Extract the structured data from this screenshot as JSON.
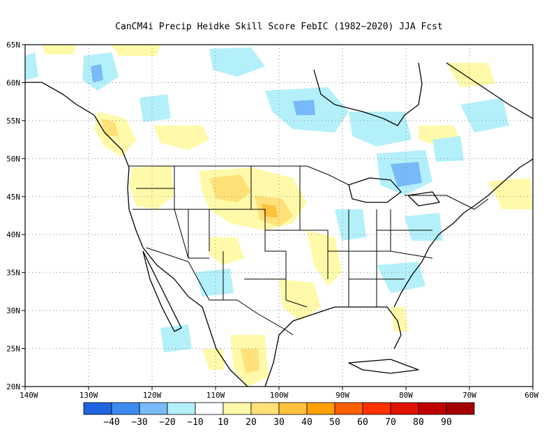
{
  "title": "CanCM4i Precip Heidke Skill Score FebIC (1982−2020) JJA Fcst",
  "lon_ticks": [
    "140W",
    "130W",
    "120W",
    "110W",
    "100W",
    "90W",
    "80W",
    "70W",
    "60W"
  ],
  "lat_ticks": [
    "65N",
    "60N",
    "55N",
    "50N",
    "45N",
    "40N",
    "35N",
    "30N",
    "25N",
    "20N"
  ],
  "colorbar": {
    "colors": [
      "#1f63de",
      "#3c8cf0",
      "#78b9f8",
      "#b4f0fa",
      "#ffffff",
      "#fffaaa",
      "#ffe178",
      "#ffc03c",
      "#ffa000",
      "#ff6000",
      "#ff3200",
      "#e11400",
      "#c00000",
      "#a50000"
    ],
    "labels": [
      "−40",
      "−30",
      "−20",
      "−10",
      "10",
      "20",
      "30",
      "40",
      "50",
      "60",
      "70",
      "80",
      "90"
    ]
  },
  "colors": {
    "cool_light": "#b4f0fa",
    "cool_mid": "#78b9f8",
    "cool_dark": "#3c8cf0",
    "warm_light": "#fffaaa",
    "warm_mid": "#ffe178",
    "warm_dark": "#ffc03c"
  }
}
